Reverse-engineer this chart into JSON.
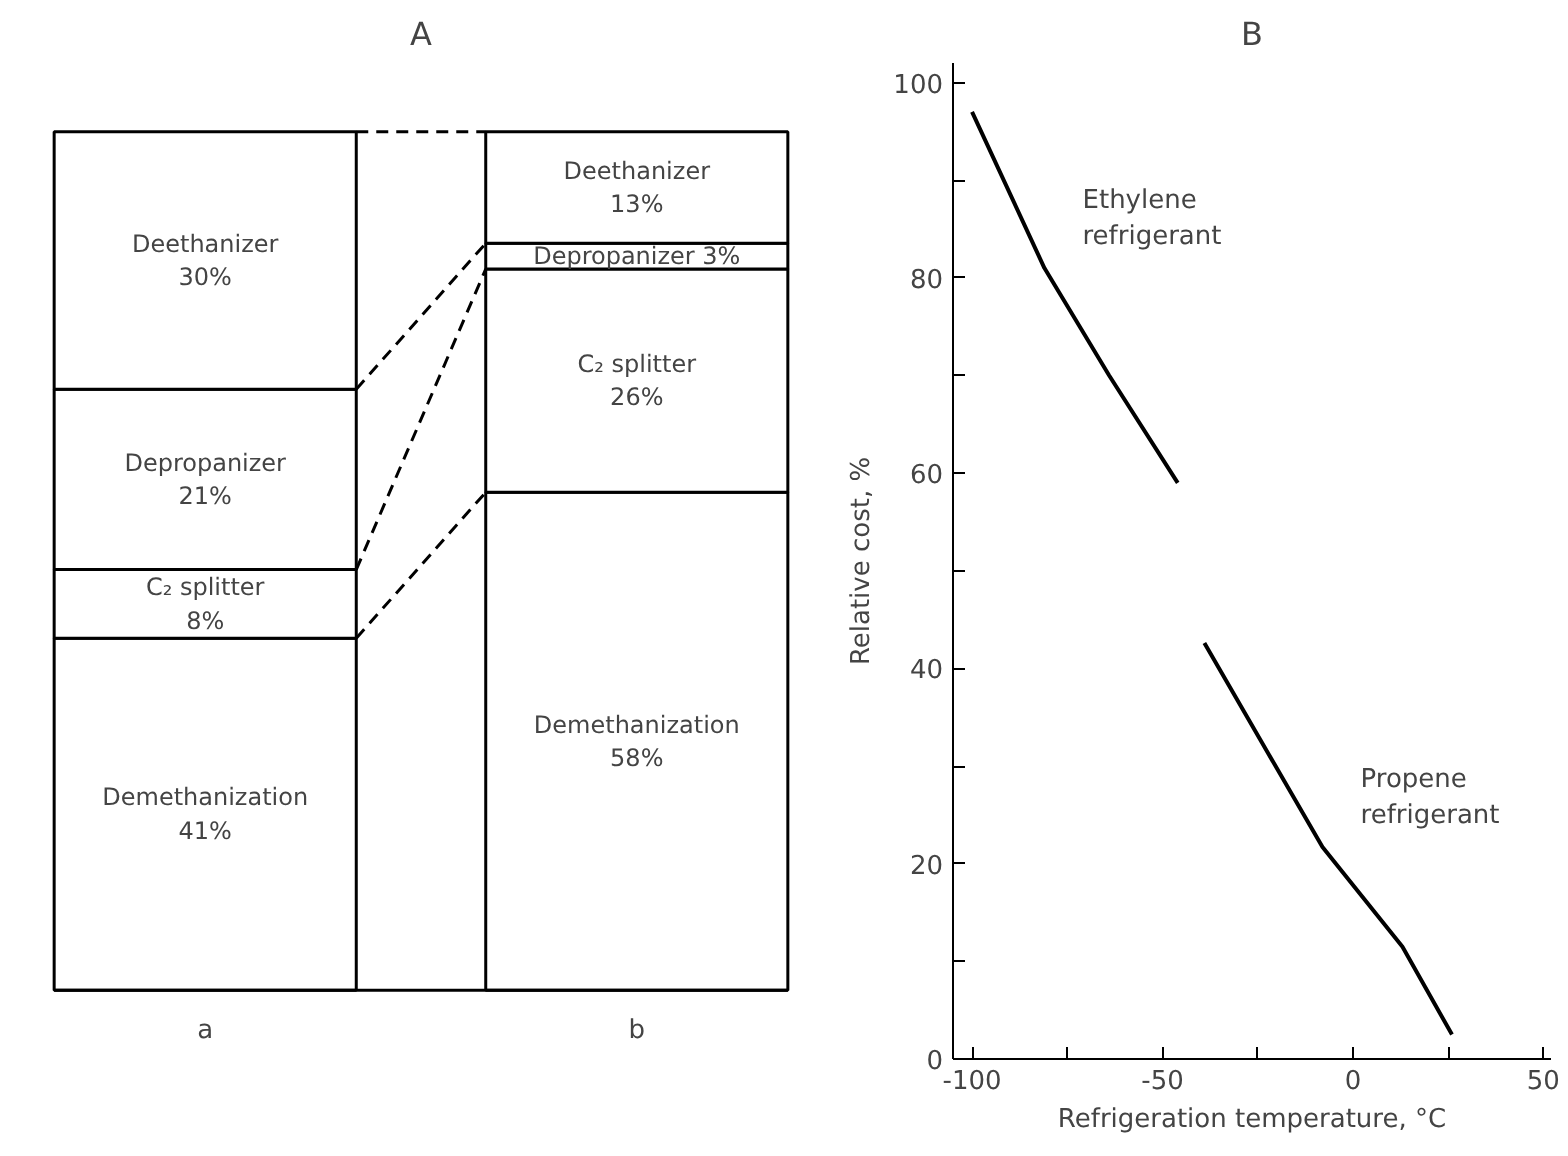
{
  "chart_data": [
    {
      "type": "bar",
      "title": "A",
      "categories": [
        "a",
        "b"
      ],
      "stacked": true,
      "grid": false,
      "series": [
        {
          "name": "Demethanization",
          "color": "#ffffff",
          "values": [
            41,
            58
          ],
          "value_labels": [
            "41%",
            "58%"
          ]
        },
        {
          "name": "C₂ splitter",
          "color": "#ffffff",
          "values": [
            8,
            26
          ],
          "value_labels": [
            "8%",
            "26%"
          ]
        },
        {
          "name": "Depropanizer",
          "color": "#ffffff",
          "values": [
            21,
            3
          ],
          "value_labels": [
            "21%",
            "3%"
          ]
        },
        {
          "name": "Deethanizer",
          "color": "#ffffff",
          "values": [
            30,
            13
          ],
          "value_labels": [
            "30%",
            "13%"
          ]
        }
      ]
    },
    {
      "type": "line",
      "title": "B",
      "xlabel": "Refrigeration temperature, °C",
      "ylabel": "Relative cost, %",
      "grid": false,
      "line_style": "solid",
      "xlim": [
        -105,
        52
      ],
      "ylim": [
        0,
        102
      ],
      "xticks": [
        -100,
        {
          "value": -75,
          "label": null
        },
        -50,
        {
          "value": -25,
          "label": null
        },
        0,
        {
          "value": 25,
          "label": null
        },
        50
      ],
      "yticks": [
        0,
        {
          "value": 10,
          "label": null
        },
        20,
        {
          "value": 30,
          "label": null
        },
        40,
        {
          "value": 50,
          "label": null
        },
        60,
        {
          "value": 70,
          "label": null
        },
        80,
        {
          "value": 90,
          "label": null
        },
        100
      ],
      "series": [
        {
          "name": "Ethylene refrigerant",
          "color": "#000000",
          "x": [
            -100,
            -81,
            -64,
            -46
          ],
          "values": [
            97,
            81,
            70,
            59
          ]
        },
        {
          "name": "Propene refrigerant",
          "color": "#000000",
          "x": [
            -39,
            -8,
            13,
            26
          ],
          "values": [
            42.6,
            21.7,
            11.5,
            2.5
          ]
        }
      ]
    }
  ]
}
